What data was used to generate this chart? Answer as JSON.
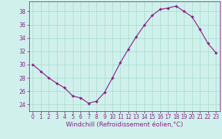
{
  "x": [
    0,
    1,
    2,
    3,
    4,
    5,
    6,
    7,
    8,
    9,
    10,
    11,
    12,
    13,
    14,
    15,
    16,
    17,
    18,
    19,
    20,
    21,
    22,
    23
  ],
  "y": [
    30.0,
    29.0,
    28.0,
    27.2,
    26.5,
    25.3,
    25.0,
    24.2,
    24.5,
    25.8,
    28.0,
    30.3,
    32.3,
    34.2,
    35.9,
    37.4,
    38.3,
    38.5,
    38.8,
    38.0,
    37.2,
    35.3,
    33.2,
    31.8
  ],
  "line_color": "#882288",
  "marker": "D",
  "marker_size": 2,
  "bg_color": "#d0f0ec",
  "grid_color": "#aaddcc",
  "xlabel": "Windchill (Refroidissement éolien,°C)",
  "xlabel_color": "#882288",
  "tick_color": "#882288",
  "label_color": "#882288",
  "spine_color": "#882288",
  "ylim": [
    23.0,
    39.5
  ],
  "xlim": [
    -0.5,
    23.5
  ],
  "yticks": [
    24,
    26,
    28,
    30,
    32,
    34,
    36,
    38
  ],
  "xticks": [
    0,
    1,
    2,
    3,
    4,
    5,
    6,
    7,
    8,
    9,
    10,
    11,
    12,
    13,
    14,
    15,
    16,
    17,
    18,
    19,
    20,
    21,
    22,
    23
  ],
  "tick_fontsize": 5.5,
  "xlabel_fontsize": 6.5
}
